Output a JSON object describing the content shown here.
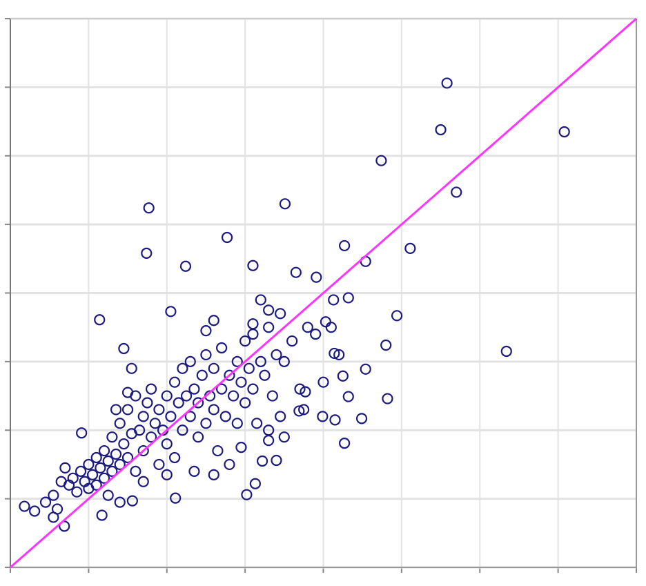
{
  "chart_data": {
    "type": "scatter",
    "grid": true,
    "xlim": [
      0,
      8
    ],
    "ylim": [
      0,
      8
    ],
    "xticks": [
      0,
      1,
      2,
      3,
      4,
      5,
      6,
      7,
      8
    ],
    "yticks": [
      0,
      1,
      2,
      3,
      4,
      5,
      6,
      7,
      8
    ],
    "series": [
      {
        "type": "scatter",
        "color": "#1a1a80",
        "x": [
          5.58,
          5.5,
          7.08,
          4.74,
          5.7,
          1.77,
          3.51,
          1.74,
          2.77,
          2.24,
          3.1,
          4.27,
          5.11,
          4.54,
          3.65,
          3.91,
          1.14,
          2.05,
          6.34,
          4.94,
          4.8,
          4.82,
          4.54,
          4.49,
          4.27,
          3.99,
          4.32,
          0.18,
          0.31,
          0.69,
          0.55,
          1.17,
          1.56,
          2.11,
          3.02,
          3.13,
          1.45,
          0.91,
          4.32,
          4.13,
          4.03,
          4.14,
          4.25,
          3.77,
          3.69,
          3.4,
          3.22,
          0.75,
          0.8,
          0.85,
          0.9,
          0.95,
          1.0,
          1.0,
          1.05,
          1.1,
          1.1,
          1.15,
          1.2,
          1.2,
          1.25,
          1.3,
          1.3,
          1.35,
          1.4,
          1.4,
          1.45,
          1.5,
          1.5,
          1.55,
          1.6,
          1.6,
          1.65,
          1.7,
          1.7,
          1.75,
          1.8,
          1.8,
          1.85,
          1.9,
          1.9,
          1.95,
          2.0,
          2.0,
          2.05,
          2.1,
          2.1,
          2.15,
          2.2,
          2.2,
          2.25,
          2.3,
          2.3,
          2.35,
          2.4,
          2.4,
          2.45,
          2.5,
          2.5,
          2.55,
          2.6,
          2.6,
          2.65,
          2.7,
          2.7,
          2.75,
          2.8,
          2.8,
          2.85,
          2.9,
          2.9,
          2.95,
          3.0,
          3.0,
          3.05,
          3.1,
          3.1,
          3.15,
          3.2,
          3.25,
          3.3,
          3.35,
          3.4,
          3.45,
          3.5,
          3.6,
          3.7,
          3.8,
          3.3,
          2.6,
          2.5,
          1.55,
          1.5,
          1.35,
          0.65,
          0.7,
          0.55,
          0.45,
          0.6,
          1.25,
          1.4,
          1.7,
          2.0,
          2.35,
          2.6,
          2.95,
          3.3,
          3.5,
          3.75,
          4.0,
          4.1,
          4.2,
          4.15,
          3.9,
          3.45,
          3.2,
          3.3,
          3.1
        ],
        "values": [
          7.06,
          6.38,
          6.35,
          5.93,
          5.47,
          5.24,
          5.3,
          4.58,
          4.81,
          4.39,
          4.4,
          4.69,
          4.65,
          4.46,
          4.3,
          4.23,
          3.61,
          3.73,
          3.15,
          3.67,
          3.24,
          2.46,
          2.89,
          2.17,
          1.81,
          2.2,
          2.49,
          0.89,
          0.82,
          0.6,
          0.73,
          0.76,
          0.97,
          1.01,
          1.06,
          1.22,
          3.19,
          1.96,
          3.93,
          3.9,
          3.58,
          3.12,
          2.79,
          2.56,
          2.28,
          1.56,
          1.55,
          1.2,
          1.3,
          1.1,
          1.4,
          1.25,
          1.15,
          1.5,
          1.35,
          1.6,
          1.2,
          1.45,
          1.7,
          1.3,
          1.55,
          1.9,
          1.4,
          1.65,
          2.1,
          1.5,
          1.8,
          2.3,
          1.6,
          1.95,
          2.5,
          1.4,
          2.0,
          2.2,
          1.7,
          2.4,
          1.9,
          2.6,
          2.1,
          1.5,
          2.3,
          2.0,
          2.5,
          1.8,
          2.2,
          2.7,
          1.6,
          2.4,
          2.0,
          2.9,
          2.5,
          2.2,
          3.0,
          2.6,
          1.9,
          2.4,
          2.8,
          2.1,
          3.1,
          2.5,
          2.3,
          2.9,
          1.7,
          2.6,
          3.2,
          2.2,
          2.8,
          1.5,
          2.5,
          3.0,
          2.1,
          2.7,
          3.3,
          2.4,
          2.9,
          2.6,
          3.4,
          2.1,
          3.0,
          2.8,
          3.5,
          2.5,
          3.1,
          2.2,
          3.0,
          3.3,
          2.6,
          3.5,
          2.0,
          3.6,
          3.45,
          2.9,
          2.55,
          2.3,
          1.25,
          1.45,
          1.05,
          0.95,
          0.85,
          1.05,
          0.95,
          1.25,
          1.35,
          1.4,
          1.35,
          1.75,
          1.85,
          1.9,
          2.3,
          2.7,
          3.5,
          3.1,
          2.15,
          3.4,
          3.7,
          3.9,
          3.75,
          3.55
        ]
      },
      {
        "type": "line",
        "color": "#ff33ff",
        "x": [
          0,
          8
        ],
        "values": [
          0,
          8
        ]
      }
    ]
  }
}
